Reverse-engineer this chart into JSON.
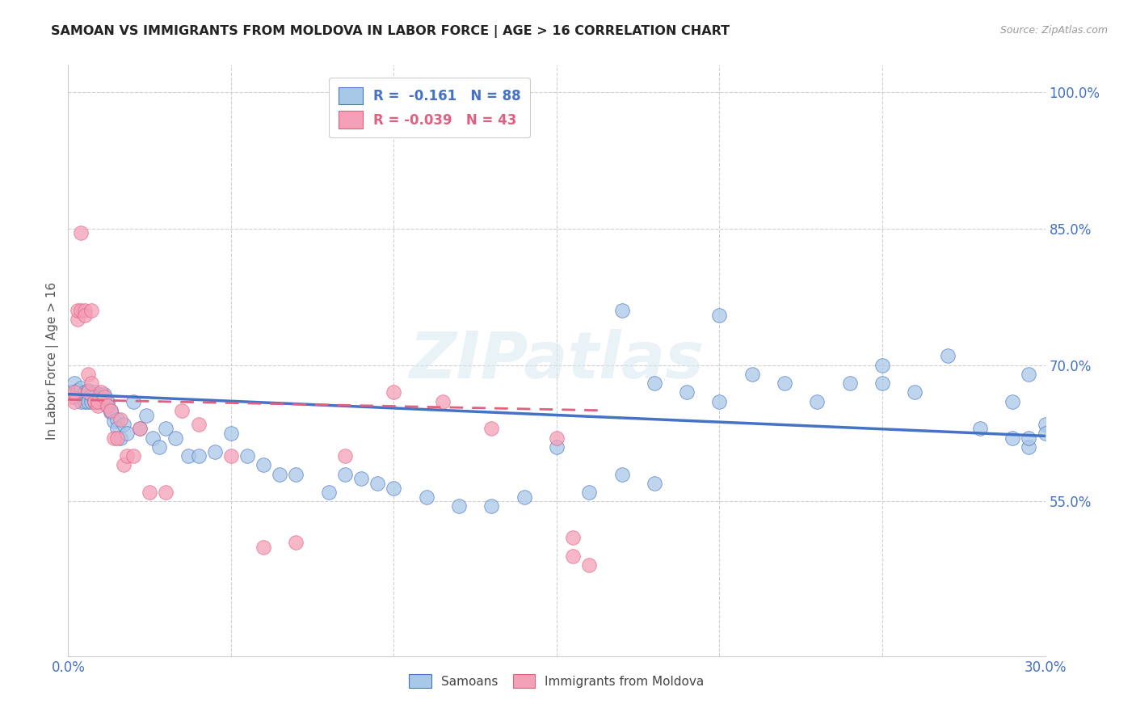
{
  "title": "SAMOAN VS IMMIGRANTS FROM MOLDOVA IN LABOR FORCE | AGE > 16 CORRELATION CHART",
  "source": "Source: ZipAtlas.com",
  "ylabel": "In Labor Force | Age > 16",
  "xlim": [
    0.0,
    0.3
  ],
  "ylim": [
    0.38,
    1.03
  ],
  "yticks": [
    0.55,
    0.7,
    0.85,
    1.0
  ],
  "xticks": [
    0.0,
    0.05,
    0.1,
    0.15,
    0.2,
    0.25,
    0.3
  ],
  "xtick_labels": [
    "0.0%",
    "",
    "",
    "",
    "",
    "",
    "30.0%"
  ],
  "ytick_labels": [
    "55.0%",
    "70.0%",
    "85.0%",
    "100.0%"
  ],
  "samoans_color": "#a8c8e8",
  "moldova_color": "#f4a0b8",
  "trend_samoan_color": "#4472c4",
  "trend_moldova_color": "#e06080",
  "watermark_text": "ZIPatlas",
  "background_color": "#ffffff",
  "grid_color": "#d0d0d0",
  "title_color": "#222222",
  "tick_color": "#4472c4",
  "legend1_label": "R =  -0.161   N = 88",
  "legend2_label": "R = -0.039   N = 43",
  "bottom_label1": "Samoans",
  "bottom_label2": "Immigrants from Moldova",
  "samoans_x": [
    0.001,
    0.002,
    0.002,
    0.003,
    0.003,
    0.003,
    0.004,
    0.004,
    0.004,
    0.005,
    0.005,
    0.005,
    0.005,
    0.006,
    0.006,
    0.006,
    0.007,
    0.007,
    0.007,
    0.008,
    0.008,
    0.008,
    0.009,
    0.009,
    0.01,
    0.01,
    0.01,
    0.011,
    0.011,
    0.012,
    0.012,
    0.013,
    0.013,
    0.014,
    0.015,
    0.015,
    0.016,
    0.017,
    0.018,
    0.02,
    0.022,
    0.024,
    0.026,
    0.028,
    0.03,
    0.033,
    0.037,
    0.04,
    0.045,
    0.05,
    0.055,
    0.06,
    0.065,
    0.07,
    0.08,
    0.085,
    0.09,
    0.095,
    0.1,
    0.11,
    0.12,
    0.13,
    0.14,
    0.15,
    0.16,
    0.17,
    0.18,
    0.19,
    0.2,
    0.21,
    0.22,
    0.23,
    0.24,
    0.25,
    0.26,
    0.27,
    0.28,
    0.29,
    0.295,
    0.3,
    0.17,
    0.18,
    0.2,
    0.25,
    0.29,
    0.295,
    0.3,
    0.295
  ],
  "samoans_y": [
    0.67,
    0.665,
    0.68,
    0.67,
    0.668,
    0.672,
    0.665,
    0.66,
    0.675,
    0.668,
    0.66,
    0.67,
    0.665,
    0.668,
    0.66,
    0.672,
    0.665,
    0.66,
    0.668,
    0.66,
    0.67,
    0.665,
    0.66,
    0.665,
    0.66,
    0.668,
    0.665,
    0.66,
    0.668,
    0.66,
    0.655,
    0.648,
    0.65,
    0.638,
    0.64,
    0.63,
    0.62,
    0.635,
    0.625,
    0.66,
    0.63,
    0.645,
    0.62,
    0.61,
    0.63,
    0.62,
    0.6,
    0.6,
    0.605,
    0.625,
    0.6,
    0.59,
    0.58,
    0.58,
    0.56,
    0.58,
    0.575,
    0.57,
    0.565,
    0.555,
    0.545,
    0.545,
    0.555,
    0.61,
    0.56,
    0.58,
    0.57,
    0.67,
    0.66,
    0.69,
    0.68,
    0.66,
    0.68,
    0.68,
    0.67,
    0.71,
    0.63,
    0.62,
    0.61,
    0.635,
    0.76,
    0.68,
    0.755,
    0.7,
    0.66,
    0.69,
    0.625,
    0.62
  ],
  "moldova_x": [
    0.001,
    0.002,
    0.002,
    0.003,
    0.003,
    0.004,
    0.004,
    0.005,
    0.005,
    0.006,
    0.006,
    0.007,
    0.007,
    0.008,
    0.008,
    0.009,
    0.009,
    0.01,
    0.011,
    0.012,
    0.013,
    0.014,
    0.015,
    0.016,
    0.017,
    0.018,
    0.02,
    0.022,
    0.025,
    0.03,
    0.035,
    0.04,
    0.05,
    0.06,
    0.07,
    0.085,
    0.1,
    0.115,
    0.13,
    0.15,
    0.155,
    0.155,
    0.16
  ],
  "moldova_y": [
    0.665,
    0.66,
    0.67,
    0.75,
    0.76,
    0.76,
    0.845,
    0.76,
    0.755,
    0.69,
    0.67,
    0.68,
    0.76,
    0.66,
    0.66,
    0.655,
    0.66,
    0.67,
    0.665,
    0.655,
    0.65,
    0.62,
    0.62,
    0.64,
    0.59,
    0.6,
    0.6,
    0.63,
    0.56,
    0.56,
    0.65,
    0.635,
    0.6,
    0.5,
    0.505,
    0.6,
    0.67,
    0.66,
    0.63,
    0.62,
    0.49,
    0.51,
    0.48
  ]
}
